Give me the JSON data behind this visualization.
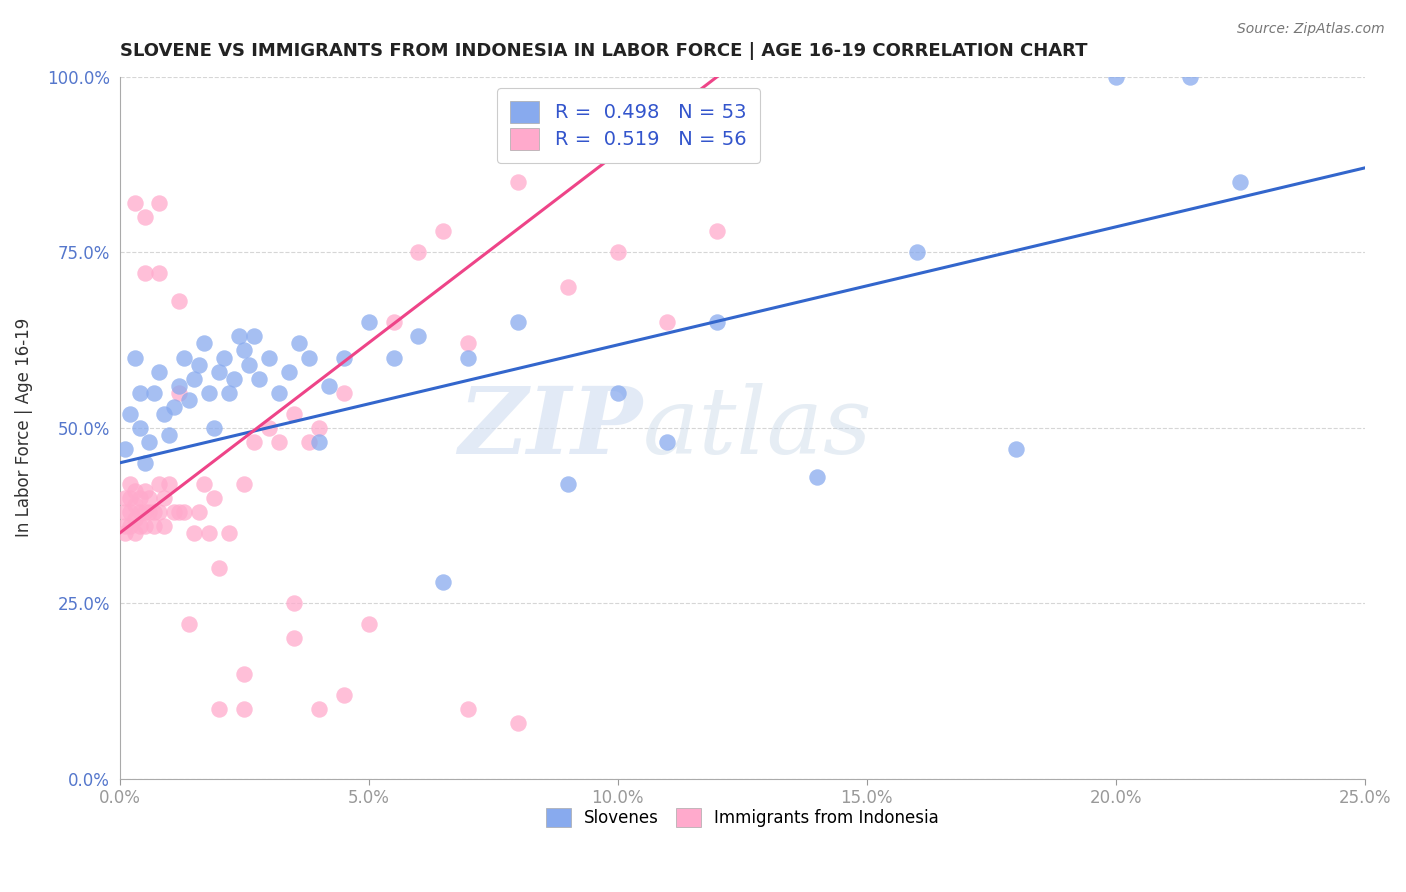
{
  "title": "SLOVENE VS IMMIGRANTS FROM INDONESIA IN LABOR FORCE | AGE 16-19 CORRELATION CHART",
  "source": "Source: ZipAtlas.com",
  "ylabel": "In Labor Force | Age 16-19",
  "xlim": [
    0.0,
    0.25
  ],
  "ylim": [
    0.0,
    1.0
  ],
  "xticks": [
    0.0,
    0.05,
    0.1,
    0.15,
    0.2,
    0.25
  ],
  "yticks": [
    0.0,
    0.25,
    0.5,
    0.75,
    1.0
  ],
  "blue_color": "#88aaee",
  "pink_color": "#ffaacc",
  "blue_line_color": "#3366cc",
  "pink_line_color": "#ee4488",
  "blue_r": 0.498,
  "blue_n": 53,
  "pink_r": 0.519,
  "pink_n": 56,
  "legend_blue_label": "Slovenes",
  "legend_pink_label": "Immigrants from Indonesia",
  "blue_x": [
    0.001,
    0.002,
    0.003,
    0.004,
    0.004,
    0.005,
    0.006,
    0.007,
    0.008,
    0.009,
    0.01,
    0.011,
    0.012,
    0.013,
    0.014,
    0.015,
    0.016,
    0.017,
    0.018,
    0.019,
    0.02,
    0.021,
    0.022,
    0.023,
    0.024,
    0.025,
    0.026,
    0.027,
    0.028,
    0.03,
    0.032,
    0.034,
    0.036,
    0.038,
    0.04,
    0.042,
    0.045,
    0.05,
    0.055,
    0.06,
    0.065,
    0.07,
    0.08,
    0.09,
    0.1,
    0.11,
    0.12,
    0.14,
    0.16,
    0.18,
    0.2,
    0.215,
    0.225
  ],
  "blue_y": [
    0.47,
    0.52,
    0.6,
    0.55,
    0.5,
    0.45,
    0.48,
    0.55,
    0.58,
    0.52,
    0.49,
    0.53,
    0.56,
    0.6,
    0.54,
    0.57,
    0.59,
    0.62,
    0.55,
    0.5,
    0.58,
    0.6,
    0.55,
    0.57,
    0.63,
    0.61,
    0.59,
    0.63,
    0.57,
    0.6,
    0.55,
    0.58,
    0.62,
    0.6,
    0.48,
    0.56,
    0.6,
    0.65,
    0.6,
    0.63,
    0.28,
    0.6,
    0.65,
    0.42,
    0.55,
    0.48,
    0.65,
    0.43,
    0.75,
    0.47,
    1.0,
    1.0,
    0.85
  ],
  "pink_x": [
    0.001,
    0.001,
    0.001,
    0.001,
    0.002,
    0.002,
    0.002,
    0.002,
    0.003,
    0.003,
    0.003,
    0.003,
    0.004,
    0.004,
    0.004,
    0.005,
    0.005,
    0.005,
    0.006,
    0.006,
    0.007,
    0.007,
    0.008,
    0.008,
    0.009,
    0.009,
    0.01,
    0.011,
    0.012,
    0.013,
    0.014,
    0.015,
    0.016,
    0.017,
    0.018,
    0.019,
    0.02,
    0.022,
    0.025,
    0.027,
    0.03,
    0.032,
    0.035,
    0.038,
    0.04,
    0.045,
    0.05,
    0.055,
    0.06,
    0.065,
    0.07,
    0.08,
    0.09,
    0.1,
    0.11,
    0.12
  ],
  "pink_y": [
    0.4,
    0.38,
    0.36,
    0.35,
    0.4,
    0.38,
    0.36,
    0.42,
    0.37,
    0.39,
    0.41,
    0.35,
    0.38,
    0.4,
    0.36,
    0.38,
    0.41,
    0.36,
    0.38,
    0.4,
    0.36,
    0.38,
    0.42,
    0.38,
    0.4,
    0.36,
    0.42,
    0.38,
    0.38,
    0.38,
    0.22,
    0.35,
    0.38,
    0.42,
    0.35,
    0.4,
    0.3,
    0.35,
    0.42,
    0.48,
    0.5,
    0.48,
    0.52,
    0.48,
    0.5,
    0.55,
    0.22,
    0.65,
    0.75,
    0.78,
    0.62,
    0.85,
    0.7,
    0.75,
    0.65,
    0.78
  ],
  "pink_outliers_x": [
    0.003,
    0.005,
    0.005,
    0.008,
    0.008,
    0.012,
    0.012,
    0.02,
    0.025,
    0.025,
    0.035,
    0.035,
    0.04,
    0.045,
    0.07,
    0.08
  ],
  "pink_outliers_y": [
    0.82,
    0.72,
    0.8,
    0.72,
    0.82,
    0.55,
    0.68,
    0.1,
    0.1,
    0.15,
    0.2,
    0.25,
    0.1,
    0.12,
    0.1,
    0.08
  ],
  "blue_line_x0": 0.0,
  "blue_line_y0": 0.45,
  "blue_line_x1": 0.25,
  "blue_line_y1": 0.87,
  "pink_line_x0": 0.0,
  "pink_line_y0": 0.35,
  "pink_line_x1": 0.12,
  "pink_line_y1": 1.0,
  "watermark_text": "ZIPatlas",
  "background_color": "#ffffff",
  "title_fontsize": 13,
  "tick_label_color": "#5577cc"
}
